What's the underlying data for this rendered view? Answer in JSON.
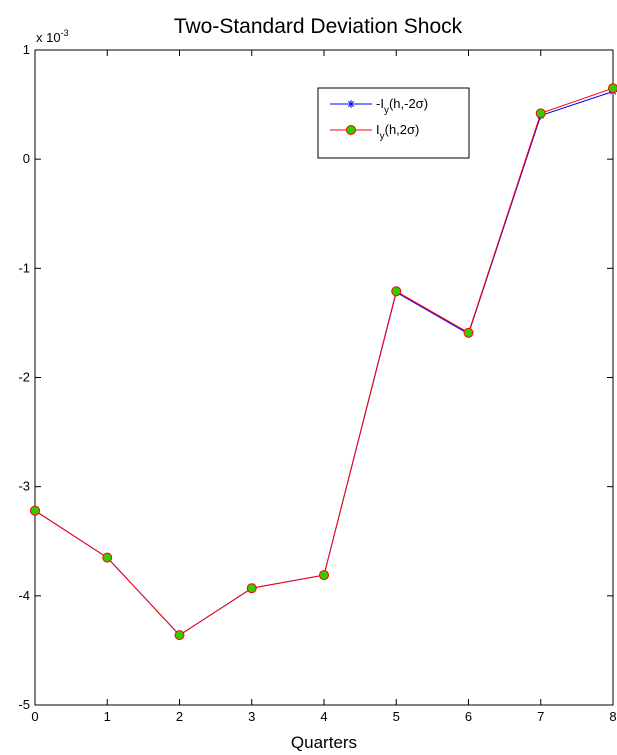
{
  "chart_data": {
    "type": "line",
    "title": "Two-Standard Deviation Shock",
    "xlabel": "Quarters",
    "ylabel": "",
    "y_exponent_label": "x 10",
    "y_exponent_power": "-3",
    "xlim": [
      0,
      8
    ],
    "ylim": [
      -5,
      1
    ],
    "x_ticks": [
      "0",
      "1",
      "2",
      "3",
      "4",
      "5",
      "6",
      "7",
      "8"
    ],
    "y_ticks": [
      "1",
      "0",
      "-1",
      "-2",
      "-3",
      "-4",
      "-5"
    ],
    "grid": false,
    "legend_position": "top-right",
    "x": [
      0,
      1,
      2,
      3,
      4,
      5,
      6,
      7,
      8
    ],
    "series": [
      {
        "name": "-I_y(h,-2σ)",
        "legend_parts": [
          "-I",
          "y",
          "(h,-2σ)"
        ],
        "color": "#0000ff",
        "marker": "asterisk",
        "values": [
          -3.22,
          -3.65,
          -4.36,
          -3.93,
          -3.81,
          -1.22,
          -1.6,
          0.4,
          0.62
        ]
      },
      {
        "name": "I_y(h,2σ)",
        "legend_parts": [
          "I",
          "y",
          "(h,2σ)"
        ],
        "color": "#ff0000",
        "marker": "circle",
        "marker_fill": "#33cc00",
        "values": [
          -3.22,
          -3.65,
          -4.36,
          -3.93,
          -3.81,
          -1.21,
          -1.59,
          0.42,
          0.65
        ]
      }
    ]
  }
}
